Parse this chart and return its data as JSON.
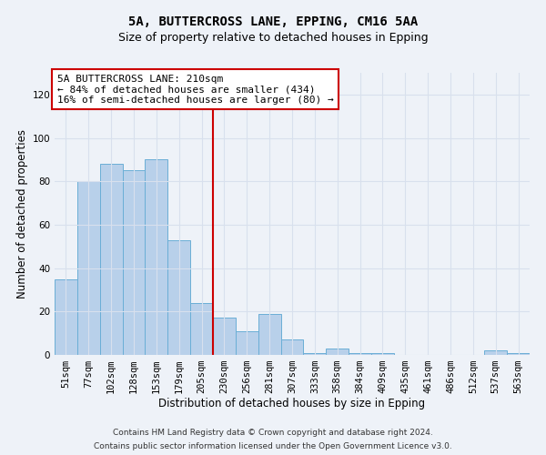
{
  "title_line1": "5A, BUTTERCROSS LANE, EPPING, CM16 5AA",
  "title_line2": "Size of property relative to detached houses in Epping",
  "xlabel": "Distribution of detached houses by size in Epping",
  "ylabel": "Number of detached properties",
  "categories": [
    "51sqm",
    "77sqm",
    "102sqm",
    "128sqm",
    "153sqm",
    "179sqm",
    "205sqm",
    "230sqm",
    "256sqm",
    "281sqm",
    "307sqm",
    "333sqm",
    "358sqm",
    "384sqm",
    "409sqm",
    "435sqm",
    "461sqm",
    "486sqm",
    "512sqm",
    "537sqm",
    "563sqm"
  ],
  "values": [
    35,
    80,
    88,
    85,
    90,
    53,
    24,
    17,
    11,
    19,
    7,
    1,
    3,
    1,
    1,
    0,
    0,
    0,
    0,
    2,
    1
  ],
  "bar_color": "#b8d0ea",
  "bar_edge_color": "#6aaed6",
  "vline_x": 6.5,
  "vline_color": "#cc0000",
  "annotation_text": "5A BUTTERCROSS LANE: 210sqm\n← 84% of detached houses are smaller (434)\n16% of semi-detached houses are larger (80) →",
  "annotation_box_edge_color": "#cc0000",
  "annotation_box_face_color": "#ffffff",
  "ylim": [
    0,
    130
  ],
  "yticks": [
    0,
    20,
    40,
    60,
    80,
    100,
    120
  ],
  "footer_line1": "Contains HM Land Registry data © Crown copyright and database right 2024.",
  "footer_line2": "Contains public sector information licensed under the Open Government Licence v3.0.",
  "background_color": "#eef2f8",
  "grid_color": "#d8e0ed",
  "title_fontsize": 10,
  "subtitle_fontsize": 9,
  "axis_label_fontsize": 8.5,
  "tick_fontsize": 7.5,
  "annotation_fontsize": 8,
  "footer_fontsize": 6.5
}
